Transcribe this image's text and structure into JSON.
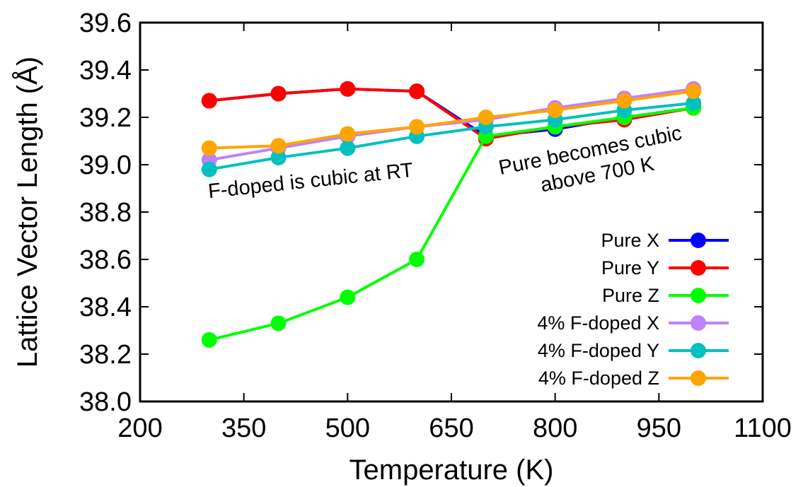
{
  "chart_data": {
    "type": "line",
    "title": "",
    "xlabel": "Temperature (K)",
    "ylabel": "Lattice Vector Length (Å)",
    "xlim": [
      200,
      1100
    ],
    "ylim": [
      38.0,
      39.6
    ],
    "xticks": [
      200,
      350,
      500,
      650,
      800,
      950,
      1100
    ],
    "yticks": [
      "38.0",
      "38.2",
      "38.4",
      "38.6",
      "38.8",
      "39.0",
      "39.2",
      "39.4",
      "39.6"
    ],
    "grid": false,
    "legend_position": "bottom-right",
    "series": [
      {
        "name": "Pure X",
        "color": "#0000ff",
        "x": [
          300,
          400,
          500,
          600,
          700,
          800,
          900,
          1000
        ],
        "y": [
          39.27,
          39.3,
          39.32,
          39.31,
          39.12,
          39.15,
          39.2,
          39.24
        ]
      },
      {
        "name": "Pure Y",
        "color": "#ff0000",
        "x": [
          300,
          400,
          500,
          600,
          700,
          800,
          900,
          1000
        ],
        "y": [
          39.27,
          39.3,
          39.32,
          39.31,
          39.11,
          39.16,
          39.19,
          39.24
        ]
      },
      {
        "name": "Pure Z",
        "color": "#00ff00",
        "x": [
          300,
          400,
          500,
          600,
          700,
          800,
          900,
          1000
        ],
        "y": [
          38.26,
          38.33,
          38.44,
          38.6,
          39.12,
          39.16,
          39.2,
          39.24
        ]
      },
      {
        "name": "4% F-doped X",
        "color": "#c080ff",
        "x": [
          300,
          400,
          500,
          600,
          700,
          800,
          900,
          1000
        ],
        "y": [
          39.02,
          39.07,
          39.12,
          39.16,
          39.19,
          39.24,
          39.28,
          39.32
        ]
      },
      {
        "name": "4% F-doped Y",
        "color": "#00c0c0",
        "x": [
          300,
          400,
          500,
          600,
          700,
          800,
          900,
          1000
        ],
        "y": [
          38.98,
          39.03,
          39.07,
          39.12,
          39.16,
          39.19,
          39.23,
          39.26
        ]
      },
      {
        "name": "4% F-doped Z",
        "color": "#ffa500",
        "x": [
          300,
          400,
          500,
          600,
          700,
          800,
          900,
          1000
        ],
        "y": [
          39.07,
          39.08,
          39.13,
          39.16,
          39.2,
          39.23,
          39.27,
          39.31
        ]
      }
    ],
    "annotations": [
      {
        "text": "F-doped is cubic at RT"
      },
      {
        "text": "Pure becomes cubic"
      },
      {
        "text": "above 700 K"
      }
    ]
  }
}
